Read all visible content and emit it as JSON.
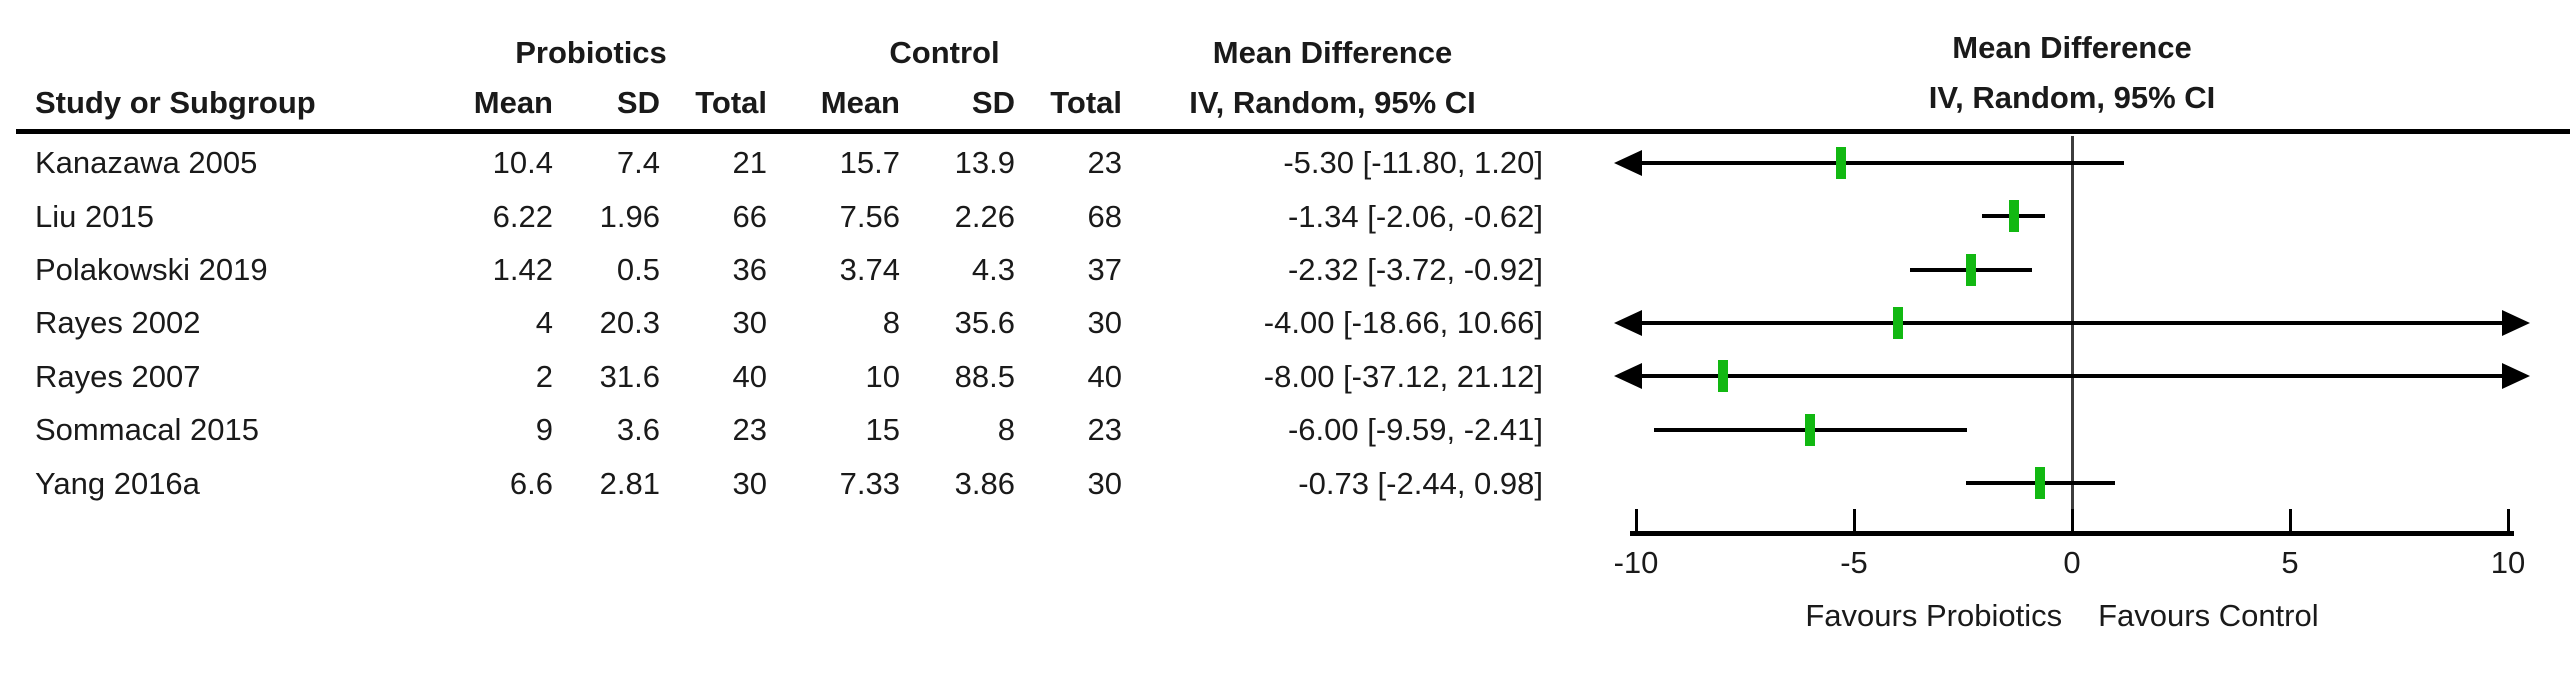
{
  "table": {
    "col_headers": {
      "study": "Study or Subgroup",
      "mean": "Mean",
      "sd": "SD",
      "total": "Total",
      "effect": "IV, Random, 95% CI"
    },
    "group_headers": {
      "treatment": "Probiotics",
      "control": "Control",
      "effect": "Mean Difference"
    }
  },
  "plot": {
    "title": "Mean Difference",
    "subtitle": "IV, Random, 95% CI",
    "favours_left": "Favours Probiotics",
    "favours_right": "Favours Control"
  },
  "chart_data": {
    "type": "forest_plot",
    "effect_measure": "Mean Difference, IV, Random, 95% CI",
    "xlim": [
      -10,
      10
    ],
    "x_ticks": [
      -10,
      -5,
      0,
      5,
      10
    ],
    "xlabel_left": "Favours Probiotics",
    "xlabel_right": "Favours Control",
    "colors": {
      "marker_green": "#12b812",
      "line_black": "#000000"
    },
    "studies": [
      {
        "label": "Kanazawa 2005",
        "treat_mean": "10.4",
        "treat_sd": "7.4",
        "treat_total": "21",
        "ctrl_mean": "15.7",
        "ctrl_sd": "13.9",
        "ctrl_total": "23",
        "md_ci_text": "-5.30 [-11.80, 1.20]",
        "md": -5.3,
        "ci_low": -11.8,
        "ci_high": 1.2
      },
      {
        "label": "Liu 2015",
        "treat_mean": "6.22",
        "treat_sd": "1.96",
        "treat_total": "66",
        "ctrl_mean": "7.56",
        "ctrl_sd": "2.26",
        "ctrl_total": "68",
        "md_ci_text": "-1.34 [-2.06, -0.62]",
        "md": -1.34,
        "ci_low": -2.06,
        "ci_high": -0.62
      },
      {
        "label": "Polakowski 2019",
        "treat_mean": "1.42",
        "treat_sd": "0.5",
        "treat_total": "36",
        "ctrl_mean": "3.74",
        "ctrl_sd": "4.3",
        "ctrl_total": "37",
        "md_ci_text": "-2.32 [-3.72, -0.92]",
        "md": -2.32,
        "ci_low": -3.72,
        "ci_high": -0.92
      },
      {
        "label": "Rayes 2002",
        "treat_mean": "4",
        "treat_sd": "20.3",
        "treat_total": "30",
        "ctrl_mean": "8",
        "ctrl_sd": "35.6",
        "ctrl_total": "30",
        "md_ci_text": "-4.00 [-18.66, 10.66]",
        "md": -4.0,
        "ci_low": -18.66,
        "ci_high": 10.66
      },
      {
        "label": "Rayes 2007",
        "treat_mean": "2",
        "treat_sd": "31.6",
        "treat_total": "40",
        "ctrl_mean": "10",
        "ctrl_sd": "88.5",
        "ctrl_total": "40",
        "md_ci_text": "-8.00 [-37.12, 21.12]",
        "md": -8.0,
        "ci_low": -37.12,
        "ci_high": 21.12
      },
      {
        "label": "Sommacal 2015",
        "treat_mean": "9",
        "treat_sd": "3.6",
        "treat_total": "23",
        "ctrl_mean": "15",
        "ctrl_sd": "8",
        "ctrl_total": "23",
        "md_ci_text": "-6.00 [-9.59, -2.41]",
        "md": -6.0,
        "ci_low": -9.59,
        "ci_high": -2.41
      },
      {
        "label": "Yang 2016a",
        "treat_mean": "6.6",
        "treat_sd": "2.81",
        "treat_total": "30",
        "ctrl_mean": "7.33",
        "ctrl_sd": "3.86",
        "ctrl_total": "30",
        "md_ci_text": "-0.73 [-2.44, 0.98]",
        "md": -0.73,
        "ci_low": -2.44,
        "ci_high": 0.98
      }
    ]
  }
}
